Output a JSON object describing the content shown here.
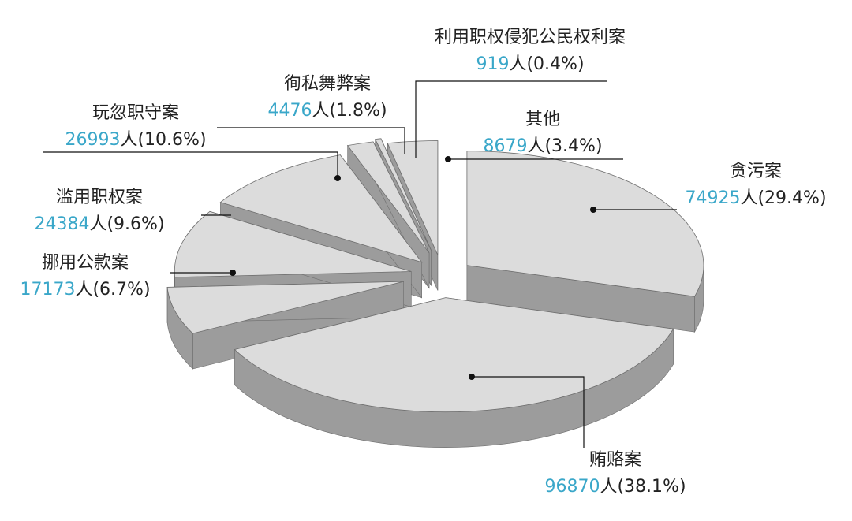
{
  "chart_data": {
    "type": "pie",
    "title": "",
    "slices": [
      {
        "name": "贪污案",
        "count": "74925",
        "pct_text": "人(29.4%)",
        "value": 29.4
      },
      {
        "name": "贿赂案",
        "count": "96870",
        "pct_text": "人(38.1%)",
        "value": 38.1
      },
      {
        "name": "挪用公款案",
        "count": "17173",
        "pct_text": "人(6.7%)",
        "value": 6.7
      },
      {
        "name": "滥用职权案",
        "count": "24384",
        "pct_text": "人(9.6%)",
        "value": 9.6
      },
      {
        "name": "玩忽职守案",
        "count": "26993",
        "pct_text": "人(10.6%)",
        "value": 10.6
      },
      {
        "name": "徇私舞弊案",
        "count": "4476",
        "pct_text": "人(1.8%)",
        "value": 1.8
      },
      {
        "name": "利用职权侵犯公民权利案",
        "count": "919",
        "pct_text": "人(0.4%)",
        "value": 0.4
      },
      {
        "name": "其他",
        "count": "8679",
        "pct_text": "人(3.4%)",
        "value": 3.4
      }
    ],
    "colors": {
      "top": "#dcdcdc",
      "side": "#9c9c9c",
      "edge": "#6e6e6e",
      "number": "#3aa7c9",
      "leader": "#111111"
    }
  }
}
